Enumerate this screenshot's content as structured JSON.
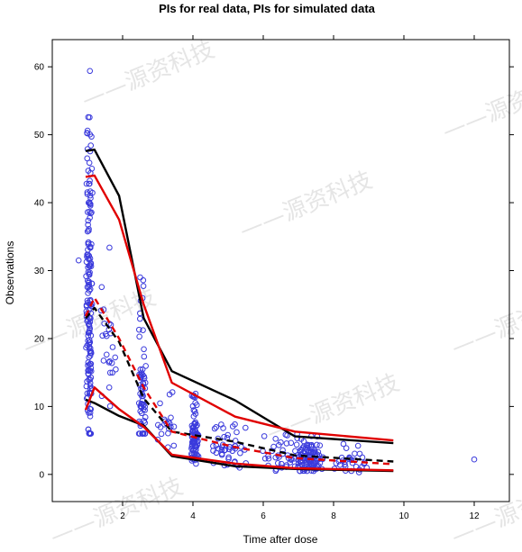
{
  "chart_data": {
    "type": "scatter",
    "title": "PIs for real data, PIs for simulated data",
    "xlabel": "Time after dose",
    "ylabel": "Observations",
    "xlim": [
      0,
      13
    ],
    "ylim": [
      -4,
      64
    ],
    "xticks": [
      2,
      4,
      6,
      8,
      10,
      12
    ],
    "yticks": [
      0,
      10,
      20,
      30,
      40,
      50,
      60
    ],
    "grid": false,
    "legend": "none",
    "watermark": "源资科技",
    "colors": {
      "points": "#3b3bdc",
      "real_pi": "#000000",
      "sim_pi": "#e00000"
    },
    "observation_clusters": [
      {
        "x_center": 1.05,
        "x_spread": 0.1,
        "y_min": 6,
        "y_max": 59.5,
        "y_mode": 24,
        "count": 170
      },
      {
        "x_center": 1.6,
        "x_spread": 0.25,
        "y_min": 9,
        "y_max": 35,
        "y_mode": 18,
        "count": 25
      },
      {
        "x_center": 2.55,
        "x_spread": 0.12,
        "y_min": 6,
        "y_max": 29,
        "y_mode": 12,
        "count": 65
      },
      {
        "x_center": 3.2,
        "x_spread": 0.35,
        "y_min": 4,
        "y_max": 14,
        "y_mode": 7,
        "count": 20
      },
      {
        "x_center": 4.05,
        "x_spread": 0.12,
        "y_min": 1.5,
        "y_max": 12,
        "y_mode": 5,
        "count": 85
      },
      {
        "x_center": 5.0,
        "x_spread": 0.6,
        "y_min": 0.8,
        "y_max": 8,
        "y_mode": 3.5,
        "count": 45
      },
      {
        "x_center": 6.5,
        "x_spread": 0.6,
        "y_min": 0.5,
        "y_max": 6,
        "y_mode": 2.5,
        "count": 35
      },
      {
        "x_center": 7.3,
        "x_spread": 0.45,
        "y_min": 0.5,
        "y_max": 6.5,
        "y_mode": 2,
        "count": 110
      },
      {
        "x_center": 8.5,
        "x_spread": 0.55,
        "y_min": 0.3,
        "y_max": 4.5,
        "y_mode": 1.5,
        "count": 30
      }
    ],
    "outliers": [
      {
        "x": 12.0,
        "y": 2.2
      },
      {
        "x": 0.75,
        "y": 31.5
      },
      {
        "x": 2.5,
        "y": 29
      }
    ],
    "series": [
      {
        "color": "#000000",
        "dash": false,
        "x": [
          0.95,
          1.2,
          1.9,
          2.6,
          3.4,
          5.2,
          6.9,
          9.7
        ],
        "y": [
          47.6,
          47.8,
          41,
          23,
          15.2,
          10.9,
          5.6,
          4.6
        ]
      },
      {
        "color": "#000000",
        "dash": true,
        "x": [
          0.95,
          1.2,
          1.9,
          2.6,
          3.4,
          5.2,
          6.9,
          9.7
        ],
        "y": [
          23,
          24.5,
          19.5,
          11.2,
          6.3,
          4.8,
          2.8,
          1.9
        ]
      },
      {
        "color": "#000000",
        "dash": false,
        "x": [
          0.95,
          1.2,
          1.9,
          2.6,
          3.4,
          5.2,
          6.9,
          9.7
        ],
        "y": [
          11,
          10.5,
          8.6,
          7.2,
          2.7,
          1.2,
          0.8,
          0.5
        ]
      },
      {
        "color": "#e00000",
        "dash": false,
        "x": [
          0.95,
          1.2,
          1.9,
          2.6,
          3.4,
          5.2,
          6.9,
          9.7
        ],
        "y": [
          43.8,
          44,
          37.5,
          25,
          13.5,
          8.5,
          6.3,
          5.0
        ]
      },
      {
        "color": "#e00000",
        "dash": true,
        "x": [
          0.95,
          1.2,
          1.9,
          2.6,
          3.4,
          5.2,
          6.9,
          9.7
        ],
        "y": [
          23.3,
          26,
          20,
          12.8,
          6.3,
          4.0,
          2.4,
          1.5
        ]
      },
      {
        "color": "#e00000",
        "dash": false,
        "x": [
          0.95,
          1.2,
          1.9,
          2.6,
          3.4,
          5.2,
          6.9,
          9.7
        ],
        "y": [
          9.5,
          12.8,
          9.6,
          7.0,
          2.9,
          1.6,
          0.9,
          0.6
        ]
      }
    ]
  }
}
